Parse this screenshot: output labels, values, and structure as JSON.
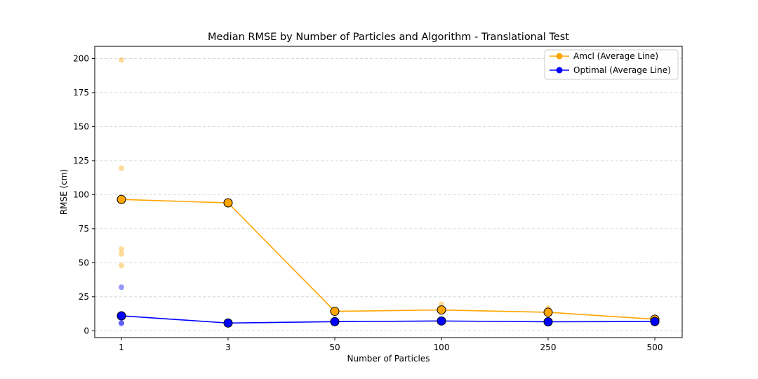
{
  "chart_data": {
    "type": "line",
    "title": "Median RMSE by Number of Particles and Algorithm - Translational Test",
    "xlabel": "Number of Particles",
    "ylabel": "RMSE (cm)",
    "categories": [
      "1",
      "3",
      "50",
      "100",
      "250",
      "500"
    ],
    "ylim": [
      -5,
      209
    ],
    "yticks": [
      0,
      25,
      50,
      75,
      100,
      125,
      150,
      175,
      200
    ],
    "grid": "y-dashed",
    "legend_position": "top-right",
    "series": [
      {
        "name": "Amcl (Average Line)",
        "color": "#ffa500",
        "values": [
          96.5,
          94,
          14.3,
          15.3,
          13.6,
          8.5
        ],
        "scatter": [
          [
            199,
            119.5,
            60,
            56.5,
            48,
            96.5
          ],
          [
            93,
            95,
            94
          ],
          [
            15,
            15.5,
            14
          ],
          [
            19.5,
            16,
            14.5
          ],
          [
            16.5,
            14,
            13
          ],
          [
            9,
            8.5,
            8
          ]
        ]
      },
      {
        "name": "Optimal (Average Line)",
        "color": "#0000ff",
        "values": [
          11,
          5.7,
          6.7,
          7.2,
          6.6,
          6.8
        ],
        "scatter": [
          [
            32,
            6,
            5.3,
            11
          ],
          [
            5.5,
            5.8
          ],
          [
            6.5,
            7
          ],
          [
            7,
            7.5
          ],
          [
            6.5,
            6.8
          ],
          [
            6.5,
            7
          ]
        ]
      }
    ]
  }
}
